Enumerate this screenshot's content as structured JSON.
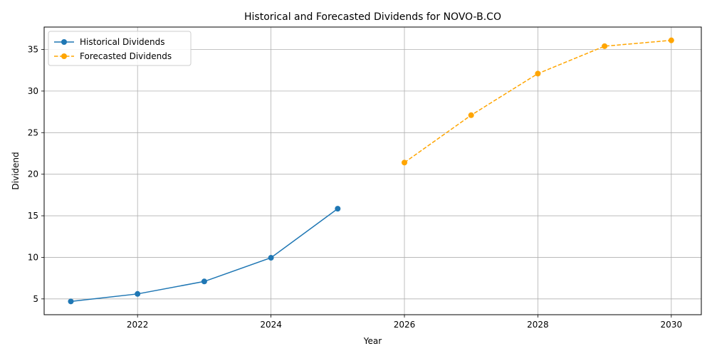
{
  "chart_data": {
    "type": "line",
    "title": "Historical and Forecasted Dividends for NOVO-B.CO",
    "xlabel": "Year",
    "ylabel": "Dividend",
    "xlim": [
      2020.6,
      2030.45
    ],
    "ylim": [
      3.1,
      37.7
    ],
    "xticks": [
      2022,
      2024,
      2026,
      2028,
      2030
    ],
    "yticks": [
      5,
      10,
      15,
      20,
      25,
      30,
      35
    ],
    "grid": true,
    "legend_position": "top-left",
    "series": [
      {
        "name": "Historical Dividends",
        "color": "#1f77b4",
        "linestyle": "solid",
        "marker": "circle",
        "x": [
          2021,
          2022,
          2023,
          2024,
          2025
        ],
        "y": [
          4.7,
          5.6,
          7.1,
          9.95,
          15.85
        ]
      },
      {
        "name": "Forecasted Dividends",
        "color": "#ffa500",
        "linestyle": "dashed",
        "marker": "circle",
        "x": [
          2026,
          2027,
          2028,
          2029,
          2030
        ],
        "y": [
          21.4,
          27.1,
          32.1,
          35.4,
          36.1
        ]
      }
    ]
  }
}
